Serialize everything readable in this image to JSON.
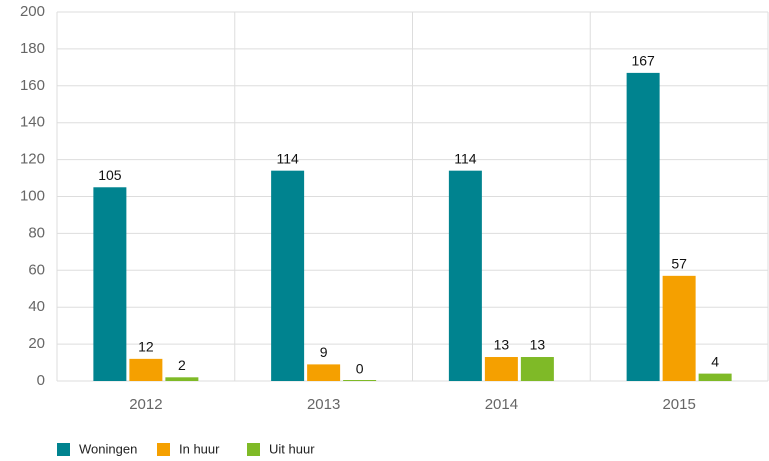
{
  "chart_data": {
    "type": "bar",
    "categories": [
      "2012",
      "2013",
      "2014",
      "2015"
    ],
    "series": [
      {
        "name": "Woningen",
        "color": "#00838f",
        "values": [
          105,
          114,
          114,
          167
        ]
      },
      {
        "name": "In huur",
        "color": "#f5a000",
        "values": [
          12,
          9,
          13,
          57
        ]
      },
      {
        "name": "Uit huur",
        "color": "#7fba27",
        "values": [
          2,
          0,
          13,
          4
        ]
      }
    ],
    "ylim": [
      0,
      200
    ],
    "yticks": [
      0,
      20,
      40,
      60,
      80,
      100,
      120,
      140,
      160,
      180,
      200
    ],
    "grid": true,
    "legend": "bottom"
  }
}
